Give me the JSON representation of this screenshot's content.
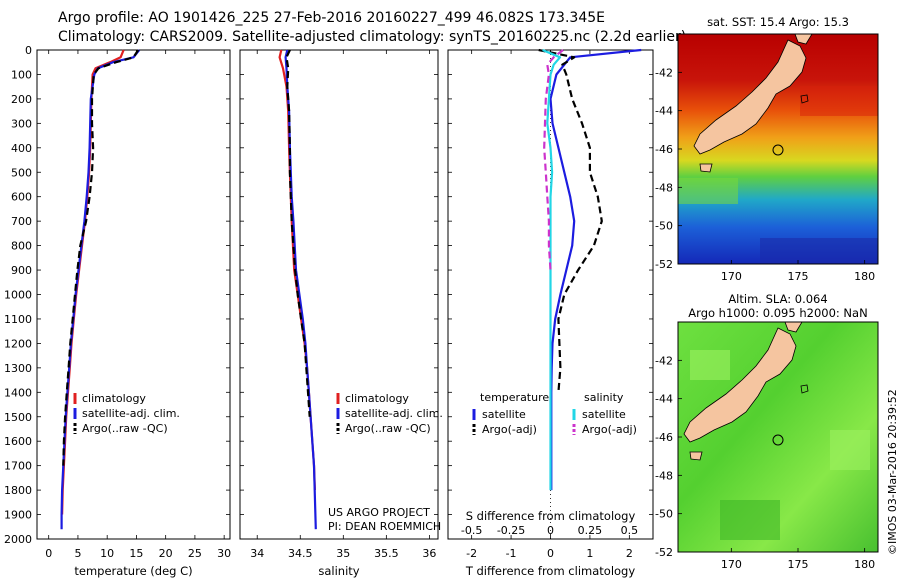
{
  "header": {
    "line1": "Argo profile: AO 1901426_225 27-Feb-2016 20160227_499 46.082S 173.345E",
    "line2": "Climatology: CARS2009. Satellite-adjusted climatology: synTS_20160225.nc (2.2d earlier)"
  },
  "credit": "©IMOS 03-Mar-2016 20:39:52",
  "project_note": [
    "US ARGO PROJECT",
    "PI: DEAN ROEMMICH"
  ],
  "colors": {
    "climatology": "#e02020",
    "satellite": "#1c1ce0",
    "argo": "#000000",
    "sal_sat": "#22d6e6",
    "sal_argo": "#cc33cc"
  },
  "chart_data": [
    {
      "type": "line",
      "xlabel": "temperature (deg C)",
      "xlim": [
        -2,
        31
      ],
      "xticks": [
        0,
        5,
        10,
        15,
        20,
        25,
        30
      ],
      "ylim": [
        0,
        2000
      ],
      "yticks": [
        0,
        100,
        200,
        300,
        400,
        500,
        600,
        700,
        800,
        900,
        1000,
        1100,
        1200,
        1300,
        1400,
        1500,
        1600,
        1700,
        1800,
        1900,
        2000
      ],
      "legend_position": "lower-middle",
      "series": [
        {
          "name": "climatology",
          "style": "solid",
          "x": [
            12.8,
            12.3,
            10.5,
            8,
            7.5,
            7.3,
            7.2,
            7.1,
            6.9,
            6.6,
            6.2,
            5.7,
            5.2,
            4.7,
            4.3,
            3.9,
            3.6,
            3.3,
            3.0,
            2.8,
            2.6,
            2.4,
            2.3
          ],
          "y": [
            0,
            30,
            50,
            75,
            100,
            200,
            300,
            400,
            500,
            600,
            700,
            800,
            900,
            1000,
            1100,
            1200,
            1300,
            1400,
            1500,
            1600,
            1700,
            1800,
            1900
          ]
        },
        {
          "name": "satellite-adj. clim.",
          "style": "solid",
          "x": [
            15.5,
            14.5,
            11,
            8.4,
            7.8,
            7.2,
            7.1,
            7.0,
            6.8,
            6.5,
            6.1,
            5.6,
            5.1,
            4.6,
            4.2,
            3.8,
            3.5,
            3.2,
            2.9,
            2.7,
            2.5,
            2.3,
            2.2,
            2.2
          ],
          "y": [
            0,
            30,
            50,
            75,
            100,
            200,
            300,
            400,
            500,
            600,
            700,
            800,
            900,
            1000,
            1100,
            1200,
            1300,
            1400,
            1500,
            1600,
            1700,
            1800,
            1900,
            1960
          ]
        },
        {
          "name": "Argo(..raw -QC)",
          "style": "dashed",
          "x": [
            15.3,
            14.5,
            11.5,
            8.5,
            7.7,
            7.4,
            7.4,
            7.6,
            7.4,
            7.0,
            6.4,
            5.4,
            4.9,
            4.5,
            4.1,
            3.7,
            3.4,
            3.1,
            2.8,
            2.6,
            2.5
          ],
          "y": [
            0,
            30,
            50,
            75,
            100,
            200,
            300,
            400,
            500,
            600,
            700,
            800,
            900,
            1000,
            1100,
            1200,
            1300,
            1400,
            1500,
            1600,
            1700
          ]
        }
      ]
    },
    {
      "type": "line",
      "xlabel": "salinity",
      "xlim": [
        33.8,
        36.1
      ],
      "xticks": [
        34,
        34.5,
        35,
        35.5,
        36
      ],
      "ylim": [
        0,
        2000
      ],
      "legend_position": "lower-middle",
      "series": [
        {
          "name": "climatology",
          "style": "solid",
          "x": [
            34.28,
            34.26,
            34.3,
            34.34,
            34.36,
            34.37,
            34.38,
            34.39,
            34.4,
            34.43,
            34.47,
            34.51,
            34.55,
            34.58,
            34.6,
            34.62,
            34.64,
            34.66,
            34.67
          ],
          "y": [
            0,
            30,
            75,
            150,
            250,
            400,
            500,
            600,
            700,
            900,
            1000,
            1100,
            1200,
            1300,
            1400,
            1500,
            1600,
            1700,
            1800
          ]
        },
        {
          "name": "satellite-adj. clim.",
          "style": "solid",
          "x": [
            34.35,
            34.33,
            34.34,
            34.35,
            34.37,
            34.38,
            34.39,
            34.4,
            34.42,
            34.45,
            34.49,
            34.53,
            34.56,
            34.58,
            34.6,
            34.62,
            34.64,
            34.66,
            34.68
          ],
          "y": [
            0,
            30,
            75,
            150,
            250,
            400,
            500,
            600,
            700,
            900,
            1000,
            1100,
            1200,
            1300,
            1400,
            1500,
            1600,
            1700,
            1960
          ]
        },
        {
          "name": "Argo(..raw -QC)",
          "style": "dashed",
          "x": [
            34.38,
            34.34,
            34.36,
            34.35,
            34.37,
            34.38,
            34.38,
            34.39,
            34.4,
            34.44,
            34.47,
            34.51,
            34.55,
            34.57,
            34.59,
            34.61
          ],
          "y": [
            0,
            30,
            75,
            150,
            250,
            400,
            500,
            600,
            700,
            900,
            1000,
            1100,
            1200,
            1300,
            1400,
            1500
          ]
        }
      ]
    },
    {
      "type": "line",
      "xlabel": "T difference from climatology",
      "xlabel_top": "S difference from climatology",
      "xlim": [
        -2.6,
        2.6
      ],
      "xticks": [
        -2,
        -1,
        0,
        1,
        2
      ],
      "top_xticks": [
        -0.5,
        -0.25,
        0,
        0.25,
        0.5
      ],
      "ylim": [
        0,
        2000
      ],
      "legend_groups": [
        "temperature",
        "salinity"
      ],
      "series": [
        {
          "name": "satellite",
          "group": "temperature",
          "style": "solid",
          "x": [
            2.3,
            0.5,
            0.35,
            0.15,
            0,
            0.05,
            0.2,
            0.35,
            0.5,
            0.6,
            0.55,
            0.4,
            0.25,
            0.12,
            0.05,
            0.03,
            0.02,
            0.02,
            0.02
          ],
          "y": [
            0,
            30,
            60,
            100,
            200,
            300,
            400,
            500,
            600,
            700,
            800,
            900,
            1000,
            1100,
            1200,
            1300,
            1400,
            1500,
            1800
          ]
        },
        {
          "name": "Argo(-adj)",
          "group": "temperature",
          "style": "dashed",
          "x": [
            -0.3,
            0.6,
            0.3,
            0.4,
            0.55,
            0.8,
            1.0,
            1.0,
            1.2,
            1.3,
            1.1,
            0.7,
            0.35,
            0.2,
            0.25,
            0.2
          ],
          "y": [
            0,
            30,
            60,
            100,
            200,
            300,
            400,
            500,
            600,
            700,
            800,
            900,
            1000,
            1100,
            1300,
            1400
          ]
        },
        {
          "name": "satellite",
          "group": "salinity",
          "style": "solid",
          "x": [
            -0.05,
            0.06,
            0.02,
            0.0,
            -0.01,
            -0.02,
            0.0,
            0.01,
            0.0,
            0.0,
            0.0,
            0.0,
            0.0
          ],
          "y": [
            0,
            30,
            60,
            100,
            200,
            300,
            400,
            500,
            600,
            700,
            900,
            1200,
            1800
          ]
        },
        {
          "name": "Argo(-adj)",
          "group": "salinity",
          "style": "dashed",
          "x": [
            0.08,
            0.02,
            -0.02,
            -0.01,
            -0.03,
            -0.04,
            -0.03,
            -0.02,
            -0.01,
            -0.01,
            0.0
          ],
          "y": [
            0,
            30,
            60,
            100,
            200,
            400,
            500,
            600,
            700,
            800,
            900
          ]
        }
      ]
    },
    {
      "type": "heatmap",
      "title": "sat. SST: 15.4 Argo: 15.3",
      "xticks": [
        170,
        175,
        180
      ],
      "yticks": [
        -42,
        -44,
        -46,
        -48,
        -50,
        -52
      ],
      "xlim": [
        166,
        181
      ],
      "ylim": [
        -52,
        -40
      ],
      "profile_location": [
        173.345,
        -46.082
      ]
    },
    {
      "type": "heatmap",
      "title": "Altim. SLA: 0.064",
      "subtitle": "Argo h1000: 0.095 h2000: NaN",
      "xticks": [
        170,
        175,
        180
      ],
      "yticks": [
        -42,
        -44,
        -46,
        -48,
        -50,
        -52
      ],
      "xlim": [
        166,
        181
      ],
      "ylim": [
        -52,
        -40
      ],
      "profile_location": [
        173.345,
        -46.082
      ]
    }
  ]
}
